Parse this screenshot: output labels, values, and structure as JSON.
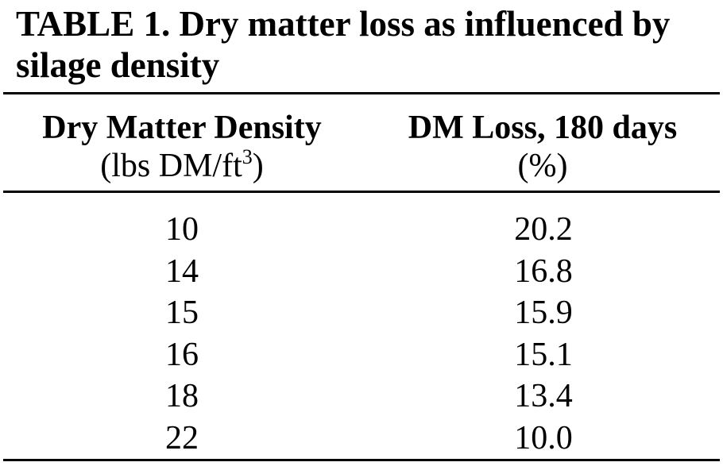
{
  "table": {
    "title_line1": "TABLE 1.  Dry matter loss as influenced by",
    "title_line2": "silage density",
    "columns": [
      {
        "label": "Dry Matter Density",
        "unit_prefix": "(lbs DM/ft",
        "unit_superscript": "3",
        "unit_suffix": ")"
      },
      {
        "label": "DM Loss, 180 days",
        "unit": "(%)"
      }
    ],
    "rows": [
      {
        "density": "10",
        "loss": "20.2"
      },
      {
        "density": "14",
        "loss": "16.8"
      },
      {
        "density": "15",
        "loss": "15.9"
      },
      {
        "density": "16",
        "loss": "15.1"
      },
      {
        "density": "18",
        "loss": "13.4"
      },
      {
        "density": "22",
        "loss": "10.0"
      }
    ]
  }
}
